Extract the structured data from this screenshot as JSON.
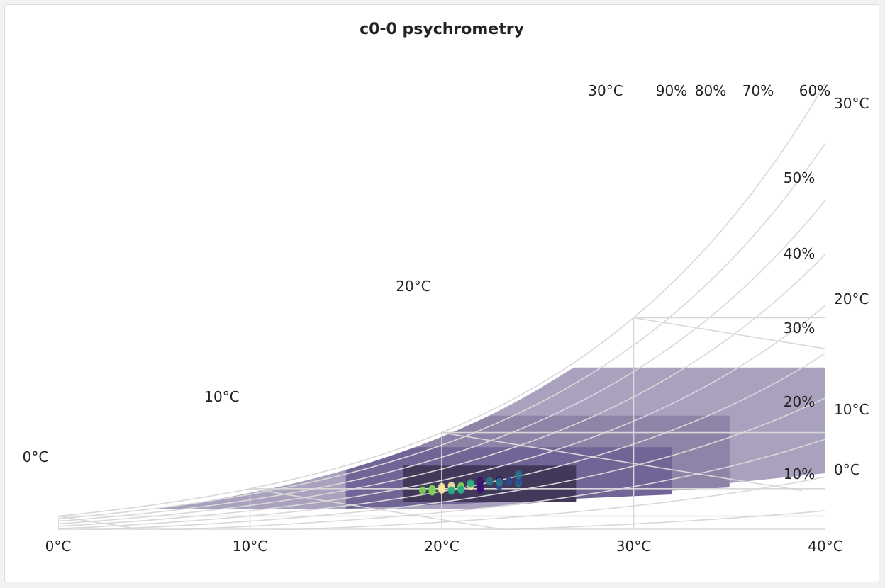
{
  "panel": {
    "title": "c0-0 psychrometry"
  },
  "colors": {
    "grid": "#d8d8d8",
    "zones": [
      "#a9a1bd",
      "#8e84a8",
      "#716598",
      "#42395a"
    ],
    "points": [
      "#3b0f70",
      "#2f4a8c",
      "#2a788e",
      "#22a884",
      "#7ad151",
      "#f6e7a0"
    ]
  },
  "chart_data": {
    "type": "scatter",
    "title": "c0-0 psychrometry",
    "x_axis": {
      "ticks": [
        "0°C",
        "10°C",
        "20°C",
        "30°C",
        "40°C"
      ],
      "range": [
        0,
        40
      ]
    },
    "right_axis": {
      "ticks": [
        "0°C",
        "10°C",
        "20°C",
        "30°C"
      ]
    },
    "wet_bulb_labels": [
      "0°C",
      "10°C",
      "20°C",
      "30°C"
    ],
    "rh_labels": [
      "10%",
      "20%",
      "30%",
      "40%",
      "50%",
      "60%",
      "70%",
      "80%",
      "90%"
    ],
    "rh_curves": [
      10,
      20,
      30,
      40,
      50,
      60,
      70,
      80,
      90,
      100
    ],
    "comfort_zones": [
      {
        "t_min": 5,
        "t_max": 40,
        "dp_max": 26.5
      },
      {
        "t_min": 15,
        "t_max": 35,
        "dp_max": 22
      },
      {
        "t_min": 15,
        "t_max": 32,
        "dp_max": 18
      },
      {
        "t_min": 18,
        "t_max": 27,
        "dp_max": 15
      }
    ],
    "points": [
      {
        "t": 19.0,
        "dp": 9.5,
        "c": 4
      },
      {
        "t": 19.5,
        "dp": 9.6,
        "c": 5
      },
      {
        "t": 19.5,
        "dp": 9.9,
        "c": 4
      },
      {
        "t": 19.5,
        "dp": 9.3,
        "c": 4
      },
      {
        "t": 20.0,
        "dp": 9.8,
        "c": 5
      },
      {
        "t": 20.0,
        "dp": 10.4,
        "c": 5
      },
      {
        "t": 20.5,
        "dp": 10.0,
        "c": 4
      },
      {
        "t": 20.5,
        "dp": 10.7,
        "c": 5
      },
      {
        "t": 20.5,
        "dp": 9.5,
        "c": 3
      },
      {
        "t": 21.0,
        "dp": 10.2,
        "c": 5
      },
      {
        "t": 21.0,
        "dp": 10.6,
        "c": 4
      },
      {
        "t": 21.0,
        "dp": 9.7,
        "c": 3
      },
      {
        "t": 21.5,
        "dp": 10.8,
        "c": 5
      },
      {
        "t": 21.5,
        "dp": 11.3,
        "c": 3
      },
      {
        "t": 22.0,
        "dp": 11.2,
        "c": 3
      },
      {
        "t": 22.0,
        "dp": 11.7,
        "c": 0
      },
      {
        "t": 22.0,
        "dp": 10.5,
        "c": 0
      },
      {
        "t": 22.0,
        "dp": 9.9,
        "c": 0
      },
      {
        "t": 22.5,
        "dp": 11.8,
        "c": 2
      },
      {
        "t": 23.0,
        "dp": 12.0,
        "c": 0
      },
      {
        "t": 23.0,
        "dp": 11.2,
        "c": 0
      },
      {
        "t": 23.0,
        "dp": 10.8,
        "c": 1
      },
      {
        "t": 23.0,
        "dp": 11.6,
        "c": 2
      },
      {
        "t": 23.5,
        "dp": 11.8,
        "c": 1
      },
      {
        "t": 24.0,
        "dp": 11.5,
        "c": 2
      },
      {
        "t": 24.0,
        "dp": 12.0,
        "c": 1
      },
      {
        "t": 24.0,
        "dp": 13.2,
        "c": 2
      }
    ]
  }
}
